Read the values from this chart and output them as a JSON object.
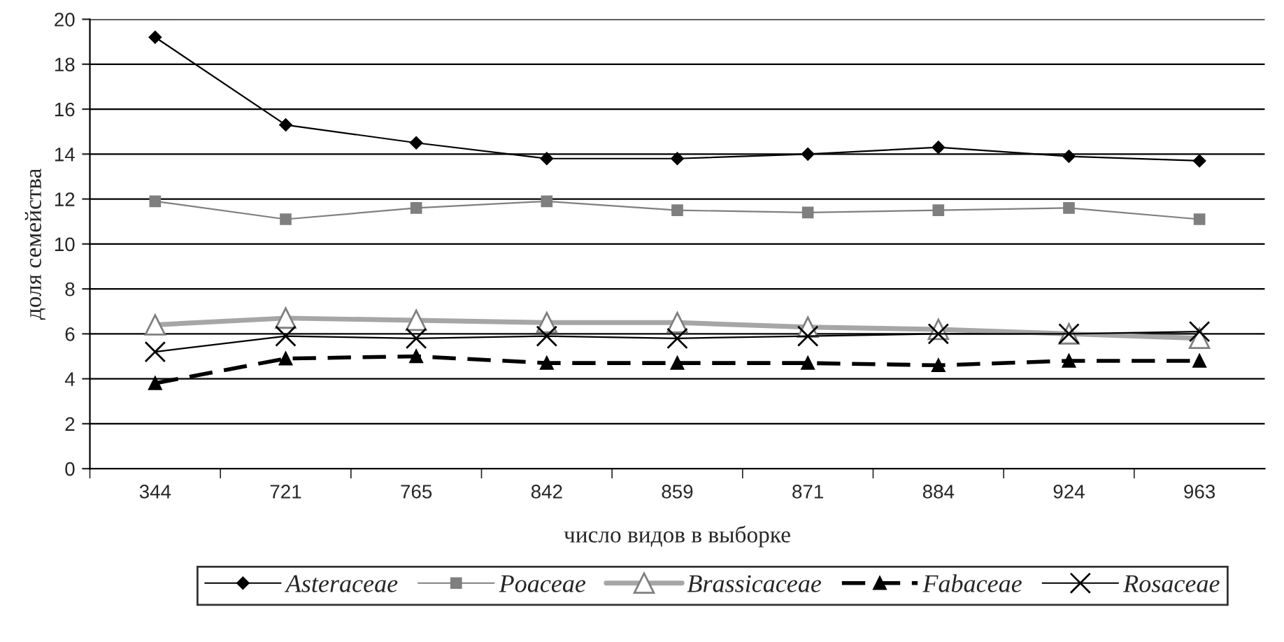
{
  "chart_data": {
    "type": "line",
    "xlabel": "число видов в выборке",
    "ylabel": "доля семейства",
    "categories": [
      "344",
      "721",
      "765",
      "842",
      "859",
      "871",
      "884",
      "924",
      "963"
    ],
    "series": [
      {
        "name": "Asteraceae",
        "color": "#000000",
        "marker": "diamond",
        "line_style": "solid",
        "values": [
          19.2,
          15.3,
          14.5,
          13.8,
          13.8,
          14.0,
          14.3,
          13.9,
          13.7
        ]
      },
      {
        "name": "Poaceae",
        "color": "#7f7f7f",
        "marker": "square",
        "line_style": "solid",
        "values": [
          11.9,
          11.1,
          11.6,
          11.9,
          11.5,
          11.4,
          11.5,
          11.6,
          11.1
        ]
      },
      {
        "name": "Brassicaceae",
        "color": "#a6a6a6",
        "marker": "triangle",
        "line_style": "solid",
        "values": [
          6.4,
          6.7,
          6.6,
          6.5,
          6.5,
          6.3,
          6.2,
          6.0,
          5.8
        ]
      },
      {
        "name": "Fabaceae",
        "color": "#000000",
        "marker": "triangle",
        "line_style": "dashed",
        "values": [
          3.8,
          4.9,
          5.0,
          4.7,
          4.7,
          4.7,
          4.6,
          4.8,
          4.8
        ]
      },
      {
        "name": "Rosaceae",
        "color": "#000000",
        "marker": "cross",
        "line_style": "solid",
        "values": [
          5.2,
          5.9,
          5.8,
          5.9,
          5.8,
          5.9,
          6.0,
          6.0,
          6.1
        ]
      }
    ],
    "ylim": [
      0,
      20
    ],
    "yticks": [
      0,
      2,
      4,
      6,
      8,
      10,
      12,
      14,
      16,
      18,
      20
    ],
    "grid": "y",
    "legend": "bottom"
  }
}
